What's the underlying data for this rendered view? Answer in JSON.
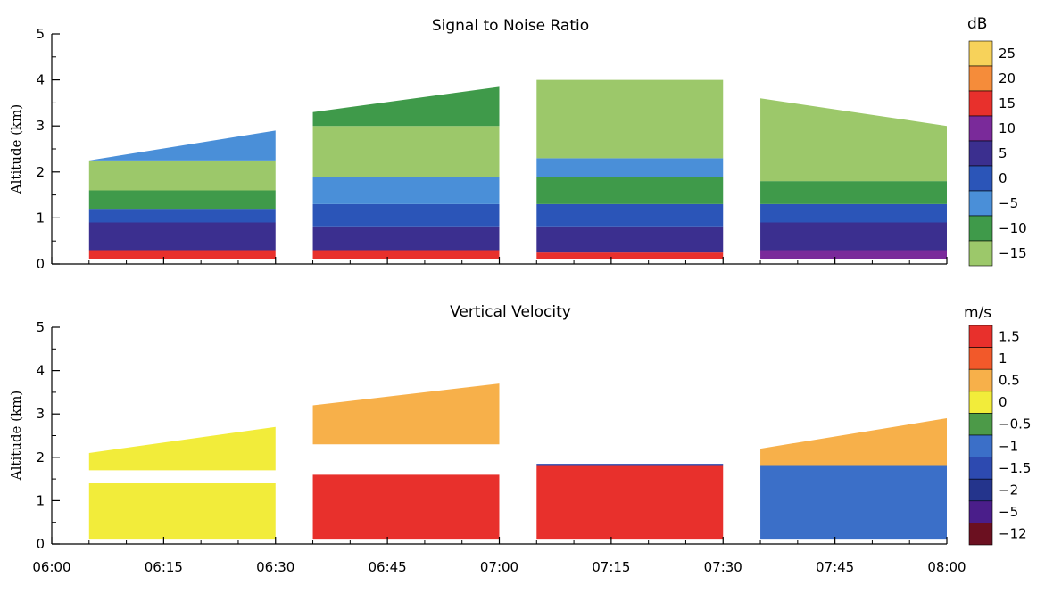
{
  "chart_data": [
    {
      "type": "heatmap",
      "title": "Signal to Noise Ratio",
      "xlabel": "",
      "ylabel": "Altitude (km)",
      "ylim": [
        0,
        5
      ],
      "yticks": [
        "0",
        "1",
        "2",
        "3",
        "4",
        "5"
      ],
      "x_tick_labels": [
        "06:00",
        "06:15",
        "06:30",
        "06:45",
        "07:00",
        "07:15",
        "07:30",
        "07:45",
        "08:00"
      ],
      "xlim": [
        "06:00",
        "08:00"
      ],
      "colorbar": {
        "unit": "dB",
        "labels": [
          "25",
          "20",
          "15",
          "10",
          "5",
          "0",
          "−5",
          "−10",
          "−15"
        ],
        "colors": [
          "#f7d25a",
          "#f58c3a",
          "#e8302c",
          "#7a2a9a",
          "#3b2f8f",
          "#2b55b8",
          "#4a8fd8",
          "#3f9a4a",
          "#9cc86a"
        ]
      },
      "segments": [
        {
          "start": "06:05",
          "end": "06:30",
          "top_start_km": 2.25,
          "top_end_km": 2.9,
          "layers": [
            {
              "to_km": 0.3,
              "value": 15
            },
            {
              "to_km": 0.9,
              "value": 5
            },
            {
              "to_km": 1.2,
              "value": 0
            },
            {
              "to_km": 1.6,
              "value": -10
            },
            {
              "to_km": 2.25,
              "value": -15
            },
            {
              "to_km": 3.0,
              "value": -5
            }
          ]
        },
        {
          "start": "06:35",
          "end": "07:00",
          "top_start_km": 3.3,
          "top_end_km": 3.85,
          "layers": [
            {
              "to_km": 0.3,
              "value": 15
            },
            {
              "to_km": 0.8,
              "value": 5
            },
            {
              "to_km": 1.3,
              "value": 0
            },
            {
              "to_km": 1.9,
              "value": -5
            },
            {
              "to_km": 3.0,
              "value": -15
            },
            {
              "to_km": 3.85,
              "value": -10
            }
          ]
        },
        {
          "start": "07:05",
          "end": "07:30",
          "top_start_km": 4.0,
          "top_end_km": 4.0,
          "layers": [
            {
              "to_km": 0.25,
              "value": 15
            },
            {
              "to_km": 0.8,
              "value": 5
            },
            {
              "to_km": 1.3,
              "value": 0
            },
            {
              "to_km": 1.9,
              "value": -10
            },
            {
              "to_km": 2.3,
              "value": -5
            },
            {
              "to_km": 4.0,
              "value": -15
            }
          ]
        },
        {
          "start": "07:35",
          "end": "08:00",
          "top_start_km": 3.6,
          "top_end_km": 3.0,
          "layers": [
            {
              "to_km": 0.3,
              "value": 10
            },
            {
              "to_km": 0.9,
              "value": 5
            },
            {
              "to_km": 1.3,
              "value": 0
            },
            {
              "to_km": 1.8,
              "value": -10
            },
            {
              "to_km": 3.6,
              "value": -15
            }
          ]
        }
      ]
    },
    {
      "type": "heatmap",
      "title": "Vertical Velocity",
      "xlabel": "",
      "ylabel": "Altitude (km)",
      "ylim": [
        0,
        5
      ],
      "yticks": [
        "0",
        "1",
        "2",
        "3",
        "4",
        "5"
      ],
      "x_tick_labels": [
        "06:00",
        "06:15",
        "06:30",
        "06:45",
        "07:00",
        "07:15",
        "07:30",
        "07:45",
        "08:00"
      ],
      "xlim": [
        "06:00",
        "08:00"
      ],
      "colorbar": {
        "unit": "m/s",
        "labels": [
          "1.5",
          "1",
          "0.5",
          "0",
          "−0.5",
          "−1",
          "−1.5",
          "−2",
          "−5",
          "−12"
        ],
        "colors": [
          "#e8302c",
          "#f2592a",
          "#f7b04a",
          "#f2ec3a",
          "#4c9a48",
          "#3b6fc8",
          "#2d4ab0",
          "#24348c",
          "#4a1e8a",
          "#6b1020"
        ]
      },
      "segments": [
        {
          "start": "06:05",
          "end": "06:30",
          "top_start_km": 2.1,
          "top_end_km": 2.7,
          "layers": [
            {
              "to_km": 1.4,
              "value": 0
            },
            {
              "to_km": 1.7,
              "value": null
            },
            {
              "to_km": 2.7,
              "value": 0
            }
          ]
        },
        {
          "start": "06:35",
          "end": "07:00",
          "top_start_km": 3.2,
          "top_end_km": 3.7,
          "layers": [
            {
              "to_km": 1.6,
              "value": 1.5
            },
            {
              "to_km": 2.3,
              "value": null
            },
            {
              "to_km": 3.7,
              "value": 0.5
            }
          ]
        },
        {
          "start": "07:05",
          "end": "07:30",
          "top_start_km": 1.85,
          "top_end_km": 1.85,
          "layers": [
            {
              "to_km": 1.8,
              "value": 1.5
            },
            {
              "to_km": 1.85,
              "value": -1.5
            }
          ]
        },
        {
          "start": "07:35",
          "end": "08:00",
          "top_start_km": 2.2,
          "top_end_km": 2.9,
          "layers": [
            {
              "to_km": 1.8,
              "value": -1
            },
            {
              "to_km": 2.9,
              "value": 0.5
            }
          ]
        }
      ]
    }
  ]
}
